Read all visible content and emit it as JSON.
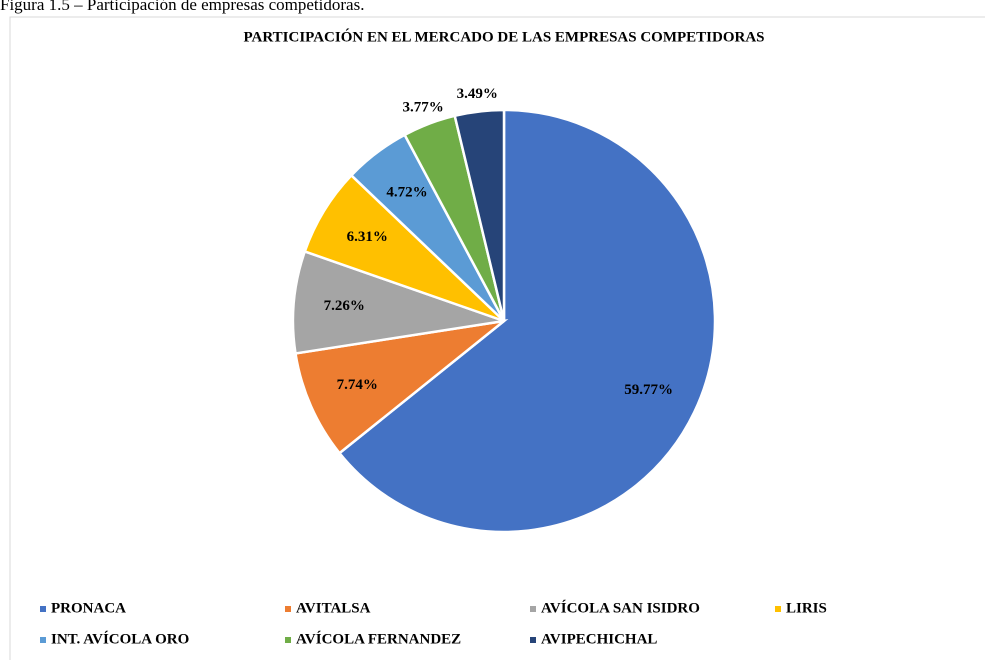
{
  "caption": "Figura 1.5 – Participación de empresas competidoras.",
  "chart_data": {
    "type": "pie",
    "title": "PARTICIPACIÓN EN EL MERCADO DE LAS EMPRESAS COMPETIDORAS",
    "categories": [
      "PRONACA",
      "AVITALSA",
      "AVÍCOLA SAN ISIDRO",
      "LIRIS",
      "INT. AVÍCOLA ORO",
      "AVÍCOLA FERNANDEZ",
      "AVIPECHICHAL"
    ],
    "values": [
      59.77,
      7.74,
      7.26,
      6.31,
      4.72,
      3.77,
      3.49
    ],
    "value_labels": [
      "59.77%",
      "7.74%",
      "7.26%",
      "6.31%",
      "4.72%",
      "3.77%",
      "3.49%"
    ],
    "colors": [
      "#4472c4",
      "#ed7d31",
      "#a5a5a5",
      "#ffc000",
      "#5b9bd5",
      "#70ad47",
      "#264478"
    ],
    "legend": "bottom"
  }
}
